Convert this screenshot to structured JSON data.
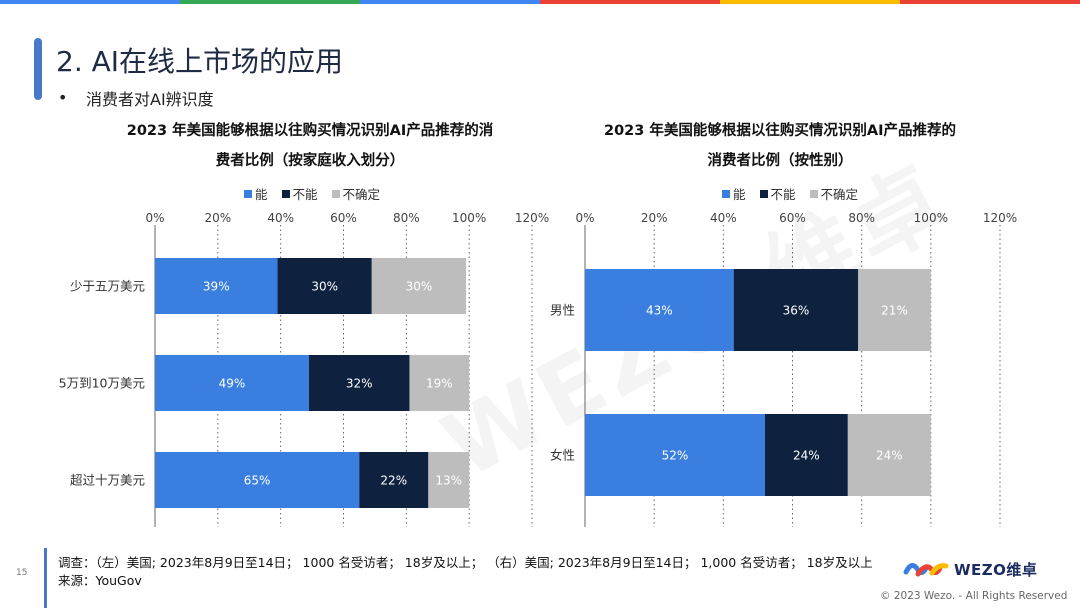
{
  "colors": {
    "top_bar": [
      "#4285f4",
      "#34a853",
      "#4285f4",
      "#ea4335",
      "#fbbc04",
      "#ea4335"
    ],
    "accent": "#4a78c9",
    "series": [
      "#3a7ee0",
      "#0e2240",
      "#bdbdbd"
    ]
  },
  "page": {
    "title": "2. AI在线上市场的应用",
    "bullet": "消费者对AI辨识度",
    "watermark": "WEZO 维卓"
  },
  "legend": [
    "能",
    "不能",
    "不确定"
  ],
  "chart_data": [
    {
      "type": "bar",
      "orientation": "horizontal",
      "stacked": true,
      "title_lines": [
        "2023 年美国能够根据以往购买情况识别AI产品推荐的消",
        "费者比例（按家庭收入划分）"
      ],
      "categories": [
        "少于五万美元",
        "5万到10万美元",
        "超过十万美元"
      ],
      "series": [
        {
          "name": "能",
          "values": [
            39,
            49,
            65
          ]
        },
        {
          "name": "不能",
          "values": [
            30,
            32,
            22
          ]
        },
        {
          "name": "不确定",
          "values": [
            30,
            19,
            13
          ]
        }
      ],
      "xticks": [
        "0%",
        "20%",
        "40%",
        "60%",
        "80%",
        "100%",
        "120%"
      ],
      "xlim": [
        0,
        120
      ],
      "value_suffix": "%",
      "grid": "vertical dotted",
      "legend_position": "top"
    },
    {
      "type": "bar",
      "orientation": "horizontal",
      "stacked": true,
      "title_lines": [
        "2023 年美国能够根据以往购买情况识别AI产品推荐的",
        "消费者比例（按性别）"
      ],
      "categories": [
        "男性",
        "女性"
      ],
      "series": [
        {
          "name": "能",
          "values": [
            43,
            52
          ]
        },
        {
          "name": "不能",
          "values": [
            36,
            24
          ]
        },
        {
          "name": "不确定",
          "values": [
            21,
            24
          ]
        }
      ],
      "xticks": [
        "0%",
        "20%",
        "40%",
        "60%",
        "80%",
        "100%",
        "120%"
      ],
      "xlim": [
        0,
        120
      ],
      "value_suffix": "%",
      "grid": "vertical dotted",
      "legend_position": "top"
    }
  ],
  "footer": {
    "survey": "调查：（左）美国; 2023年8月9日至14日； 1000 名受访者； 18岁及以上； （右）美国; 2023年8月9日至14日； 1,000 名受访者； 18岁及以上",
    "source": "来源：YouGov",
    "page_number": "15",
    "logo_text": "WEZO维卓",
    "copyright": "© 2023 Wezo. - All Rights Reserved"
  }
}
